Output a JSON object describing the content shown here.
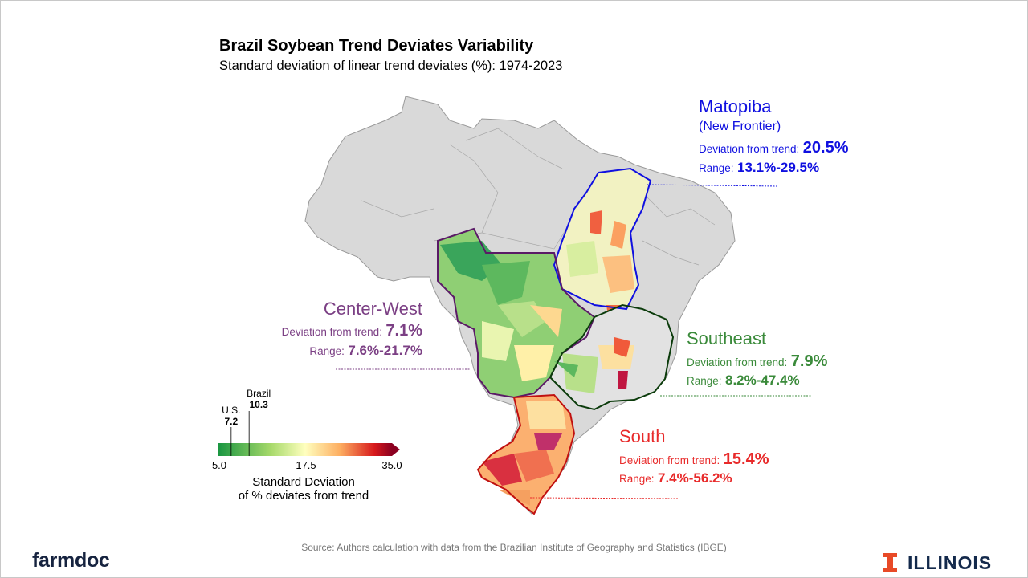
{
  "title": "Brazil Soybean Trend Deviates Variability",
  "subtitle": "Standard deviation of linear trend deviates (%): 1974-2023",
  "regions": {
    "matopiba": {
      "name": "Matopiba",
      "note": "(New Frontier)",
      "deviation_label": "Deviation from trend:",
      "deviation_value": "20.5%",
      "range_label": "Range:",
      "range_value": "13.1%-29.5%",
      "color": "#1010e0"
    },
    "center_west": {
      "name": "Center-West",
      "deviation_label": "Deviation from trend:",
      "deviation_value": "7.1%",
      "range_label": "Range:",
      "range_value": "7.6%-21.7%",
      "color": "#7b3f84"
    },
    "southeast": {
      "name": "Southeast",
      "deviation_label": "Deviation from trend:",
      "deviation_value": "7.9%",
      "range_label": "Range:",
      "range_value": "8.2%-47.4%",
      "color": "#3a8a3a"
    },
    "south": {
      "name": "South",
      "deviation_label": "Deviation from trend:",
      "deviation_value": "15.4%",
      "range_label": "Range:",
      "range_value": "7.4%-56.2%",
      "color": "#e82a2a"
    }
  },
  "legend": {
    "title_line1": "Standard Deviation",
    "title_line2": "of % deviates from trend",
    "min": 5.0,
    "mid": 17.5,
    "max": 35.0,
    "tick_labels": [
      "5.0",
      "17.5",
      "35.0"
    ],
    "colors": [
      "#1a9641",
      "#a6d96a",
      "#ffffbf",
      "#fdae61",
      "#d7191c",
      "#8b0020"
    ],
    "markers": [
      {
        "name": "U.S.",
        "value": 7.2,
        "value_label": "7.2"
      },
      {
        "name": "Brazil",
        "value": 10.3,
        "value_label": "10.3"
      }
    ]
  },
  "source": "Source: Authors calculation with data from the Brazilian Institute of Geography and Statistics (IBGE)",
  "logos": {
    "left": "farmdoc",
    "right": "ILLINOIS"
  }
}
